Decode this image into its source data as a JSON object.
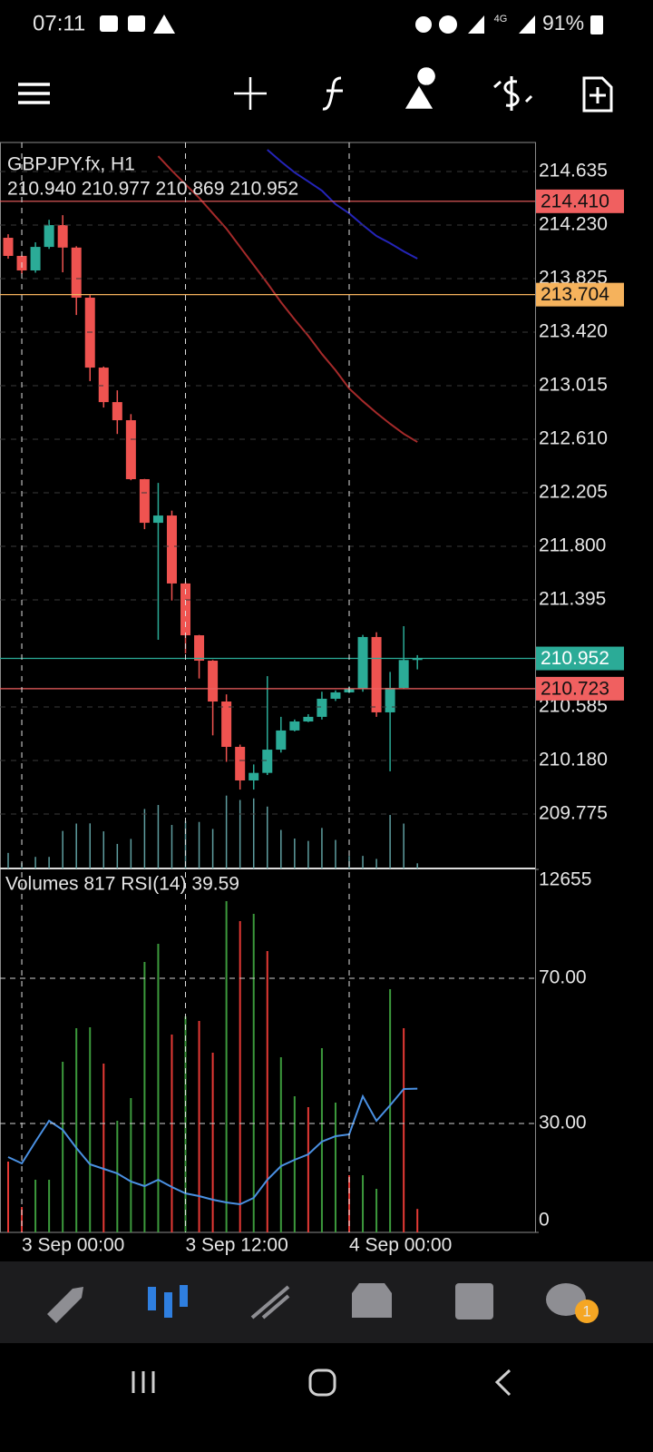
{
  "status_bar": {
    "time": "07:11",
    "network": "4G",
    "battery": "91%"
  },
  "chart_data": [
    {
      "type": "candlestick",
      "title": "GBPJPY.fx, H1",
      "subtitle": "210.940 210.977 210.869 210.952",
      "open": [
        214.134,
        213.997,
        213.887,
        214.065,
        214.23,
        214.06,
        213.681,
        213.152,
        212.891,
        212.754,
        212.308,
        211.978,
        212.033,
        211.519,
        211.127,
        210.935,
        210.626,
        210.283,
        210.029,
        210.086,
        210.262,
        210.407,
        210.475,
        210.51,
        210.647,
        210.695,
        210.72,
        211.114,
        210.544,
        210.729,
        210.94
      ],
      "high": [
        214.161,
        214.0,
        214.1,
        214.27,
        214.305,
        214.07,
        213.7,
        213.16,
        212.98,
        212.8,
        212.31,
        212.28,
        212.07,
        211.53,
        211.13,
        210.94,
        210.68,
        210.3,
        210.15,
        210.818,
        210.51,
        210.49,
        210.53,
        210.7,
        210.71,
        210.74,
        211.13,
        211.15,
        210.85,
        211.196,
        210.977
      ],
      "low": [
        213.976,
        213.86,
        213.87,
        214.05,
        213.873,
        213.55,
        213.05,
        212.85,
        212.65,
        212.3,
        211.93,
        211.093,
        211.39,
        210.99,
        210.8,
        210.37,
        210.17,
        209.96,
        209.96,
        210.07,
        210.24,
        210.4,
        210.47,
        210.49,
        210.63,
        210.69,
        210.7,
        210.51,
        210.098,
        210.72,
        210.869
      ],
      "close": [
        213.997,
        213.887,
        214.065,
        214.23,
        214.06,
        213.681,
        213.152,
        212.891,
        212.754,
        212.308,
        211.978,
        212.033,
        211.519,
        211.127,
        210.935,
        210.626,
        210.283,
        210.029,
        210.086,
        210.262,
        210.407,
        210.475,
        210.51,
        210.647,
        210.695,
        210.72,
        211.114,
        210.544,
        210.729,
        210.94,
        210.952
      ],
      "up_color": "#2bab97",
      "down_color": "#ef5350",
      "lines": [
        {
          "color": "#a52a2a",
          "values": [
            null,
            null,
            null,
            null,
            null,
            null,
            null,
            null,
            null,
            null,
            null,
            214.752,
            214.642,
            214.539,
            214.436,
            214.319,
            214.203,
            214.065,
            213.928,
            213.791,
            213.647,
            213.516,
            213.393,
            213.255,
            213.132,
            212.994,
            212.898,
            212.809,
            212.727,
            212.651,
            212.589
          ]
        },
        {
          "color": "#2424b8",
          "values": [
            null,
            null,
            null,
            null,
            null,
            null,
            null,
            null,
            null,
            null,
            null,
            null,
            null,
            null,
            null,
            null,
            null,
            null,
            null,
            214.8,
            214.711,
            214.628,
            214.56,
            214.491,
            214.388,
            214.319,
            214.23,
            214.148,
            214.093,
            214.031,
            213.976
          ]
        }
      ],
      "levels": [
        {
          "price": {
            "value": 214.41,
            "label": "214.410"
          },
          "color": "#f06060",
          "text_color": "#111111"
        },
        {
          "price": 213.704,
          "color": "#f5b25c",
          "text_color": "#111111"
        },
        {
          "price": 210.952,
          "color": "#2bab97",
          "text_color": "#ffffff"
        },
        {
          "price": 210.723,
          "color": "#f06060",
          "text_color": "#111111"
        }
      ],
      "ylim": [
        209.363,
        214.855
      ],
      "yticks": [
        214.635,
        {
          "value": 214.23,
          "label": "214.230"
        },
        213.825,
        {
          "value": 213.42,
          "label": "213.420"
        },
        213.015,
        {
          "value": 212.61,
          "label": "212.610"
        },
        212.205,
        {
          "value": 211.8,
          "label": "211.800"
        },
        211.395,
        210.585,
        {
          "value": 210.18,
          "label": "210.180"
        },
        209.775
      ],
      "grid": true
    },
    {
      "type": "combo",
      "title": "Volumes 817 RSI(14) 39.59",
      "categories": [
        null,
        "3 Sep 00:00",
        null,
        null,
        null,
        null,
        null,
        null,
        null,
        null,
        null,
        null,
        null,
        "3 Sep 12:00",
        null,
        null,
        null,
        null,
        null,
        null,
        null,
        null,
        null,
        null,
        null,
        "4 Sep 00:00",
        null,
        null,
        null,
        null,
        null
      ],
      "series": [
        {
          "type": "bar",
          "values": [
            2468,
            886,
            1835,
            1835,
            5948,
            7119,
            7151,
            5885,
            3892,
            4683,
            9429,
            10062,
            6898,
            7530,
            7372,
            6265,
            11549,
            10853,
            11106,
            9808,
            6107,
            4746,
            4366,
            6423,
            4525,
            1993,
            1993,
            1519,
            8480,
            7119,
            817
          ],
          "colors": [
            "#e53935",
            "#e53935",
            "#3c9a3c",
            "#3c9a3c",
            "#3c9a3c",
            "#3c9a3c",
            "#3c9a3c",
            "#e53935",
            "#3c9a3c",
            "#3c9a3c",
            "#3c9a3c",
            "#3c9a3c",
            "#e53935",
            "#3c9a3c",
            "#e53935",
            "#e53935",
            "#3c9a3c",
            "#e53935",
            "#3c9a3c",
            "#e53935",
            "#3c9a3c",
            "#3c9a3c",
            "#e53935",
            "#3c9a3c",
            "#3c9a3c",
            "#e53935",
            "#3c9a3c",
            "#3c9a3c",
            "#3c9a3c",
            "#e53935",
            "#e53935"
          ],
          "mini_color": "#5f9ea0"
        },
        {
          "type": "line",
          "axis": "y2",
          "color": "#4a90e2",
          "values": [
            20.75,
            19,
            25,
            30.75,
            28.25,
            23.25,
            18.75,
            17.5,
            16.25,
            14,
            12.75,
            14.5,
            12.5,
            10.75,
            10,
            9,
            8.25,
            7.75,
            9.5,
            14.5,
            18.25,
            20,
            21.5,
            25,
            26.5,
            27,
            37.5,
            30.75,
            35,
            39.5,
            39.59
          ]
        }
      ],
      "ylim": [
        0,
        12655
      ],
      "yticks": [
        0,
        12655
      ],
      "y2lim": [
        0,
        100
      ],
      "y2ticks": [
        {
          "value": 70,
          "label": "70.00"
        },
        {
          "value": 30,
          "label": "30.00"
        }
      ]
    }
  ],
  "bottom_nav": {
    "badge": "1"
  }
}
